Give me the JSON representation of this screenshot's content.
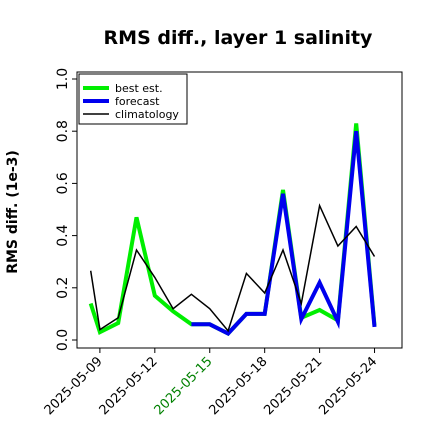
{
  "chart_data": {
    "type": "line",
    "title": "RMS diff., layer 1 salinity",
    "ylabel": "RMS diff. (1e-3)",
    "xlabel": "",
    "ylim": [
      0.0,
      1.0
    ],
    "yticks": [
      0.0,
      0.2,
      0.4,
      0.6,
      0.8,
      1.0
    ],
    "ytick_labels": [
      "0.0",
      "0.2",
      "0.4",
      "0.6",
      "0.8",
      "1.0"
    ],
    "xlim": [
      "2025-05-07 18:00",
      "2025-05-25 12:00"
    ],
    "xticks": [
      "2025-05-09",
      "2025-05-12",
      "2025-05-15",
      "2025-05-18",
      "2025-05-21",
      "2025-05-24"
    ],
    "xtick_colors": [
      "#000000",
      "#000000",
      "#008000",
      "#000000",
      "#000000",
      "#000000"
    ],
    "grid": false,
    "legend_position": "top-left",
    "series": [
      {
        "name": "best est.",
        "color": "#00ee00",
        "x": [
          "2025-05-08 12:00",
          "2025-05-09 00:00",
          "2025-05-10 00:00",
          "2025-05-11 00:00",
          "2025-05-12 00:00",
          "2025-05-13 00:00",
          "2025-05-14 00:00",
          "2025-05-15 00:00",
          "2025-05-16 00:00",
          "2025-05-17 00:00",
          "2025-05-18 00:00",
          "2025-05-19 00:00",
          "2025-05-20 00:00",
          "2025-05-21 00:00",
          "2025-05-22 00:00",
          "2025-05-23 00:00",
          "2025-05-24 00:00"
        ],
        "values": [
          0.14,
          0.03,
          0.065,
          0.47,
          0.17,
          0.11,
          0.06,
          0.06,
          0.025,
          0.1,
          0.1,
          0.575,
          0.085,
          0.115,
          0.075,
          0.83,
          0.055
        ]
      },
      {
        "name": "forecast",
        "color": "#0000ee",
        "x": [
          "2025-05-14 00:00",
          "2025-05-15 00:00",
          "2025-05-16 00:00",
          "2025-05-17 00:00",
          "2025-05-18 00:00",
          "2025-05-19 00:00",
          "2025-05-20 00:00",
          "2025-05-21 00:00",
          "2025-05-22 00:00",
          "2025-05-23 00:00",
          "2025-05-24 00:00"
        ],
        "values": [
          0.06,
          0.06,
          0.025,
          0.1,
          0.1,
          0.56,
          0.08,
          0.22,
          0.07,
          0.8,
          0.05
        ]
      },
      {
        "name": "climatology",
        "color": "#000000",
        "x": [
          "2025-05-08 12:00",
          "2025-05-09 00:00",
          "2025-05-10 00:00",
          "2025-05-11 00:00",
          "2025-05-12 00:00",
          "2025-05-13 00:00",
          "2025-05-14 00:00",
          "2025-05-15 00:00",
          "2025-05-16 00:00",
          "2025-05-17 00:00",
          "2025-05-18 00:00",
          "2025-05-19 00:00",
          "2025-05-20 00:00",
          "2025-05-21 00:00",
          "2025-05-22 00:00",
          "2025-05-23 00:00",
          "2025-05-24 00:00"
        ],
        "values": [
          0.265,
          0.04,
          0.085,
          0.345,
          0.24,
          0.12,
          0.175,
          0.12,
          0.035,
          0.255,
          0.18,
          0.345,
          0.14,
          0.515,
          0.36,
          0.435,
          0.32
        ]
      }
    ]
  }
}
